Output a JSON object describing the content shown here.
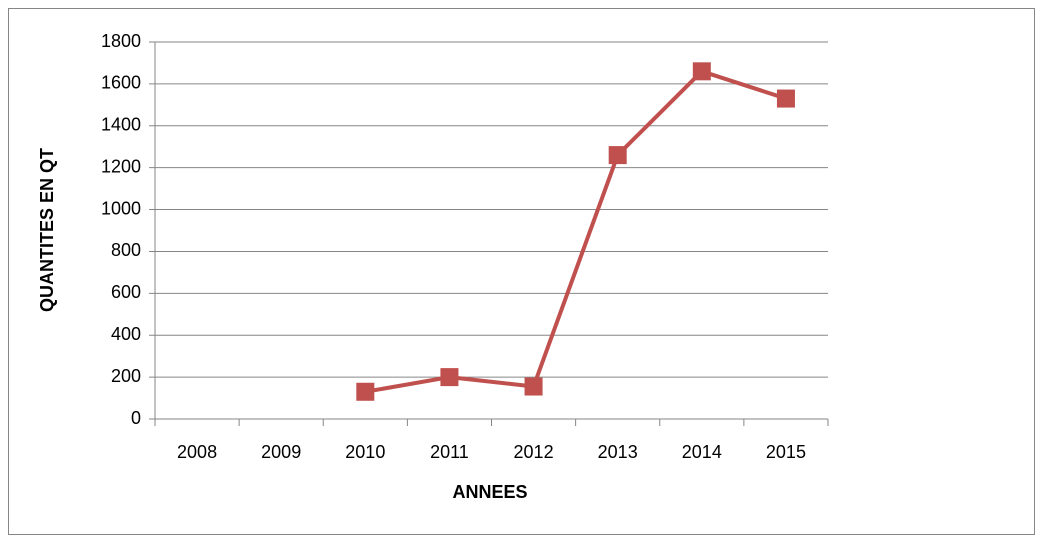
{
  "chart_data": {
    "type": "line",
    "x_label": "ANNEES",
    "y_label": "QUANTITES EN QT",
    "categories": [
      "2008",
      "2009",
      "2010",
      "2011",
      "2012",
      "2013",
      "2014",
      "2015"
    ],
    "values": [
      null,
      null,
      130,
      200,
      155,
      1260,
      1660,
      1530
    ],
    "color": "#c0504d",
    "ylim": [
      0,
      1800
    ],
    "yticks": [
      0,
      200,
      400,
      600,
      800,
      1000,
      1200,
      1400,
      1600,
      1800
    ],
    "grid": true
  }
}
